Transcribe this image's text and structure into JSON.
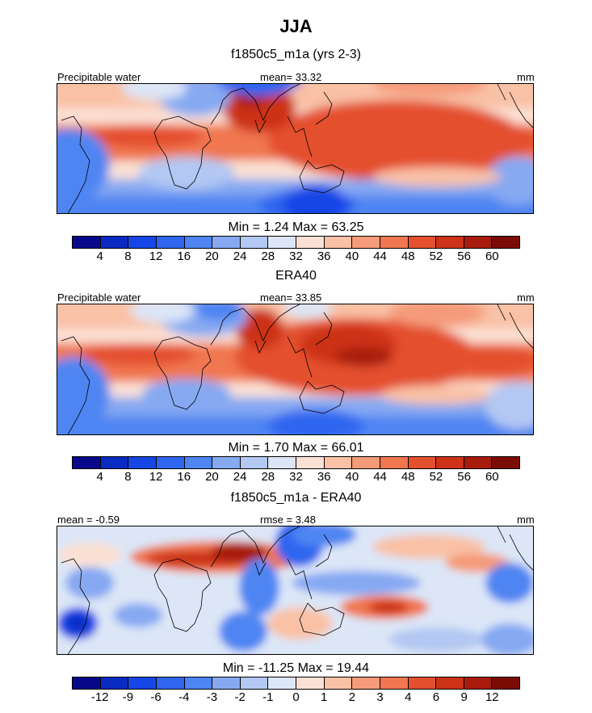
{
  "title": "JJA",
  "panels": [
    {
      "subtitle": "f1850c5_m1a (yrs 2-3)",
      "left_label": "Precipitable water",
      "center_label": "mean=  33.32",
      "units": "mm",
      "minmax": "Min =   1.24 Max =  63.25"
    },
    {
      "subtitle": "ERA40",
      "left_label": "Precipitable water",
      "center_label": "mean=  33.85",
      "units": "mm",
      "minmax": "Min =   1.70 Max =  66.01"
    },
    {
      "subtitle": "f1850c5_m1a - ERA40",
      "left_label": "mean =  -0.59",
      "center_label": "rmse =   3.48",
      "units": "mm",
      "minmax": "Min = -11.25 Max =  19.44"
    }
  ],
  "colorbars": {
    "field": {
      "colors": [
        "#08088a",
        "#0a2bc2",
        "#1646e6",
        "#2e66f0",
        "#4f85f2",
        "#86a9f2",
        "#b3c8f2",
        "#dce6f7",
        "#fbe1d4",
        "#f9c1a6",
        "#f59b7a",
        "#f07750",
        "#e4502e",
        "#cc3318",
        "#a81c0e",
        "#7a0c05"
      ],
      "ticks": [
        "4",
        "8",
        "12",
        "16",
        "20",
        "24",
        "28",
        "32",
        "36",
        "40",
        "44",
        "48",
        "52",
        "56",
        "60"
      ]
    },
    "diff": {
      "colors": [
        "#08088a",
        "#0a2bc2",
        "#1646e6",
        "#2e66f0",
        "#4f85f2",
        "#86a9f2",
        "#b3c8f2",
        "#dce6f7",
        "#fbe1d4",
        "#f9c1a6",
        "#f59b7a",
        "#f07750",
        "#e4502e",
        "#cc3318",
        "#a81c0e",
        "#7a0c05"
      ],
      "ticks": [
        "-12",
        "-9",
        "-6",
        "-4",
        "-3",
        "-2",
        "-1",
        "0",
        "1",
        "2",
        "3",
        "4",
        "6",
        "9",
        "12"
      ]
    }
  }
}
